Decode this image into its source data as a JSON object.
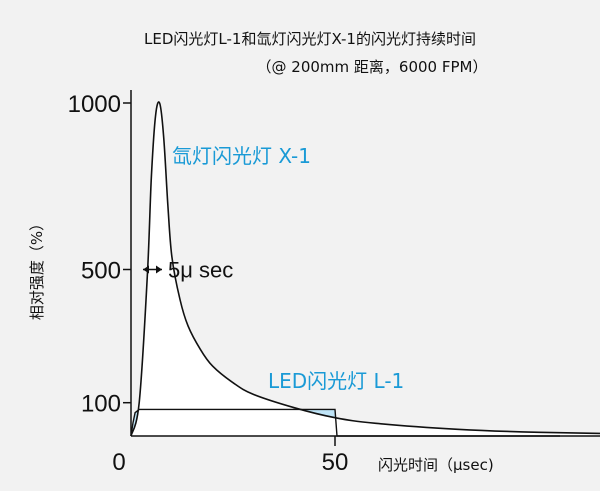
{
  "chart_data": {
    "type": "line",
    "title": "LED闪光灯L-1和氙灯闪光灯X-1的闪光灯持续时间",
    "subtitle": "（@ 200mm 距离，6000 FPM）",
    "xlabel": "闪光时间（μsec)",
    "ylabel": "相对强度（%）",
    "xlim": [
      0,
      210
    ],
    "ylim": [
      0,
      1000
    ],
    "x_ticks": [
      {
        "value": 0,
        "label": "0"
      },
      {
        "value": 50,
        "label": "50"
      }
    ],
    "y_ticks": [
      {
        "value": 100,
        "label": "100"
      },
      {
        "value": 500,
        "label": "500"
      },
      {
        "value": 1000,
        "label": "1000"
      }
    ],
    "series": [
      {
        "name": "氙灯闪光灯 X-1",
        "color": "#1a9ad6",
        "fill": "#ffffff",
        "x": [
          0,
          2,
          4,
          5,
          6,
          7,
          8,
          9,
          10,
          12,
          14,
          17,
          20,
          25,
          30,
          40,
          50,
          60,
          80,
          100,
          130,
          160,
          200
        ],
        "y": [
          0,
          100,
          480,
          780,
          960,
          1000,
          900,
          700,
          540,
          410,
          330,
          260,
          210,
          160,
          125,
          85,
          55,
          38,
          20,
          11,
          5,
          2,
          1
        ]
      },
      {
        "name": "LED闪光灯 L-1",
        "color": "#1a9ad6",
        "fill": "#bfe4f7",
        "x": [
          0,
          0.5,
          1,
          2,
          50,
          50.5,
          200
        ],
        "y": [
          0,
          40,
          70,
          80,
          80,
          0,
          0
        ]
      }
    ],
    "annotations": [
      {
        "text": "5μ sec",
        "x": 5,
        "y": 500
      }
    ]
  }
}
